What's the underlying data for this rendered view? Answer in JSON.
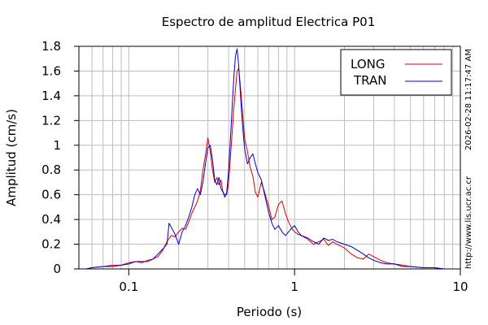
{
  "chart_data": {
    "type": "line",
    "title": "Espectro de amplitud Electrica P01",
    "xlabel": "Periodo (s)",
    "ylabel": "Amplitud (cm/s)",
    "x_scale": "log",
    "xlim": [
      0.05,
      10
    ],
    "ylim": [
      0,
      1.8
    ],
    "grid": true,
    "legend_position": "top-right",
    "x_ticks": [
      {
        "value": 0.1,
        "label": "0.1"
      },
      {
        "value": 1,
        "label": "1"
      },
      {
        "value": 10,
        "label": "10"
      }
    ],
    "y_ticks": [
      {
        "value": 0,
        "label": "0"
      },
      {
        "value": 0.2,
        "label": "0.2"
      },
      {
        "value": 0.4,
        "label": "0.4"
      },
      {
        "value": 0.6,
        "label": "0.6"
      },
      {
        "value": 0.8,
        "label": "0.8"
      },
      {
        "value": 1.0,
        "label": "1"
      },
      {
        "value": 1.2,
        "label": "1.2"
      },
      {
        "value": 1.4,
        "label": "1.4"
      },
      {
        "value": 1.6,
        "label": "1.6"
      },
      {
        "value": 1.8,
        "label": "1.8"
      }
    ],
    "series": [
      {
        "name": "LONG",
        "color": "#dd0000",
        "points": [
          [
            0.055,
            0.0
          ],
          [
            0.06,
            0.01
          ],
          [
            0.07,
            0.02
          ],
          [
            0.08,
            0.03
          ],
          [
            0.09,
            0.03
          ],
          [
            0.1,
            0.05
          ],
          [
            0.11,
            0.06
          ],
          [
            0.12,
            0.05
          ],
          [
            0.13,
            0.07
          ],
          [
            0.14,
            0.08
          ],
          [
            0.15,
            0.1
          ],
          [
            0.16,
            0.15
          ],
          [
            0.17,
            0.22
          ],
          [
            0.18,
            0.27
          ],
          [
            0.19,
            0.26
          ],
          [
            0.2,
            0.3
          ],
          [
            0.21,
            0.33
          ],
          [
            0.22,
            0.32
          ],
          [
            0.23,
            0.38
          ],
          [
            0.24,
            0.45
          ],
          [
            0.25,
            0.5
          ],
          [
            0.26,
            0.55
          ],
          [
            0.27,
            0.63
          ],
          [
            0.28,
            0.8
          ],
          [
            0.29,
            0.92
          ],
          [
            0.3,
            1.06
          ],
          [
            0.31,
            0.95
          ],
          [
            0.32,
            0.8
          ],
          [
            0.33,
            0.7
          ],
          [
            0.34,
            0.74
          ],
          [
            0.35,
            0.68
          ],
          [
            0.36,
            0.72
          ],
          [
            0.37,
            0.62
          ],
          [
            0.38,
            0.6
          ],
          [
            0.39,
            0.6
          ],
          [
            0.4,
            0.7
          ],
          [
            0.41,
            0.9
          ],
          [
            0.42,
            1.1
          ],
          [
            0.43,
            1.3
          ],
          [
            0.44,
            1.45
          ],
          [
            0.45,
            1.6
          ],
          [
            0.46,
            1.62
          ],
          [
            0.47,
            1.5
          ],
          [
            0.48,
            1.35
          ],
          [
            0.49,
            1.2
          ],
          [
            0.5,
            1.05
          ],
          [
            0.52,
            0.95
          ],
          [
            0.54,
            0.82
          ],
          [
            0.56,
            0.75
          ],
          [
            0.58,
            0.62
          ],
          [
            0.6,
            0.58
          ],
          [
            0.63,
            0.7
          ],
          [
            0.66,
            0.62
          ],
          [
            0.7,
            0.5
          ],
          [
            0.73,
            0.4
          ],
          [
            0.76,
            0.42
          ],
          [
            0.8,
            0.52
          ],
          [
            0.84,
            0.55
          ],
          [
            0.88,
            0.45
          ],
          [
            0.92,
            0.38
          ],
          [
            0.96,
            0.33
          ],
          [
            1.0,
            0.3
          ],
          [
            1.05,
            0.28
          ],
          [
            1.1,
            0.27
          ],
          [
            1.2,
            0.24
          ],
          [
            1.3,
            0.2
          ],
          [
            1.4,
            0.22
          ],
          [
            1.5,
            0.24
          ],
          [
            1.6,
            0.19
          ],
          [
            1.7,
            0.22
          ],
          [
            1.8,
            0.2
          ],
          [
            2.0,
            0.17
          ],
          [
            2.2,
            0.12
          ],
          [
            2.4,
            0.09
          ],
          [
            2.6,
            0.08
          ],
          [
            2.8,
            0.12
          ],
          [
            3.0,
            0.1
          ],
          [
            3.3,
            0.07
          ],
          [
            3.6,
            0.05
          ],
          [
            4.0,
            0.04
          ],
          [
            4.5,
            0.03
          ],
          [
            5.0,
            0.02
          ],
          [
            6.0,
            0.01
          ],
          [
            7.0,
            0.01
          ],
          [
            8.0,
            0.0
          ]
        ]
      },
      {
        "name": "TRAN",
        "color": "#0000cc",
        "points": [
          [
            0.055,
            0.0
          ],
          [
            0.06,
            0.01
          ],
          [
            0.07,
            0.02
          ],
          [
            0.08,
            0.02
          ],
          [
            0.09,
            0.03
          ],
          [
            0.1,
            0.04
          ],
          [
            0.11,
            0.06
          ],
          [
            0.12,
            0.06
          ],
          [
            0.13,
            0.06
          ],
          [
            0.14,
            0.08
          ],
          [
            0.15,
            0.12
          ],
          [
            0.16,
            0.16
          ],
          [
            0.17,
            0.2
          ],
          [
            0.175,
            0.37
          ],
          [
            0.18,
            0.34
          ],
          [
            0.19,
            0.28
          ],
          [
            0.2,
            0.2
          ],
          [
            0.21,
            0.3
          ],
          [
            0.22,
            0.35
          ],
          [
            0.23,
            0.42
          ],
          [
            0.24,
            0.5
          ],
          [
            0.25,
            0.6
          ],
          [
            0.26,
            0.65
          ],
          [
            0.27,
            0.6
          ],
          [
            0.28,
            0.7
          ],
          [
            0.29,
            0.85
          ],
          [
            0.3,
            0.98
          ],
          [
            0.31,
            1.0
          ],
          [
            0.32,
            0.88
          ],
          [
            0.33,
            0.72
          ],
          [
            0.34,
            0.68
          ],
          [
            0.35,
            0.74
          ],
          [
            0.36,
            0.65
          ],
          [
            0.37,
            0.62
          ],
          [
            0.38,
            0.58
          ],
          [
            0.39,
            0.62
          ],
          [
            0.4,
            0.8
          ],
          [
            0.41,
            1.05
          ],
          [
            0.42,
            1.3
          ],
          [
            0.43,
            1.55
          ],
          [
            0.44,
            1.72
          ],
          [
            0.45,
            1.78
          ],
          [
            0.46,
            1.65
          ],
          [
            0.47,
            1.45
          ],
          [
            0.48,
            1.25
          ],
          [
            0.49,
            1.1
          ],
          [
            0.5,
            0.97
          ],
          [
            0.52,
            0.85
          ],
          [
            0.54,
            0.9
          ],
          [
            0.56,
            0.93
          ],
          [
            0.58,
            0.85
          ],
          [
            0.6,
            0.78
          ],
          [
            0.63,
            0.72
          ],
          [
            0.66,
            0.6
          ],
          [
            0.7,
            0.45
          ],
          [
            0.73,
            0.37
          ],
          [
            0.76,
            0.32
          ],
          [
            0.8,
            0.35
          ],
          [
            0.84,
            0.3
          ],
          [
            0.88,
            0.27
          ],
          [
            0.92,
            0.3
          ],
          [
            0.96,
            0.33
          ],
          [
            1.0,
            0.35
          ],
          [
            1.05,
            0.3
          ],
          [
            1.1,
            0.27
          ],
          [
            1.2,
            0.25
          ],
          [
            1.3,
            0.22
          ],
          [
            1.4,
            0.2
          ],
          [
            1.5,
            0.25
          ],
          [
            1.6,
            0.23
          ],
          [
            1.7,
            0.24
          ],
          [
            1.8,
            0.22
          ],
          [
            2.0,
            0.2
          ],
          [
            2.2,
            0.18
          ],
          [
            2.4,
            0.15
          ],
          [
            2.6,
            0.12
          ],
          [
            2.8,
            0.09
          ],
          [
            3.0,
            0.07
          ],
          [
            3.3,
            0.05
          ],
          [
            3.6,
            0.04
          ],
          [
            4.0,
            0.04
          ],
          [
            4.5,
            0.02
          ],
          [
            5.0,
            0.02
          ],
          [
            6.0,
            0.01
          ],
          [
            7.0,
            0.01
          ],
          [
            8.0,
            0.0
          ]
        ]
      }
    ]
  },
  "side_labels": {
    "timestamp": "2026-02-28 11:17:47 AM",
    "url": "http://www.lis.ucr.ac.cr"
  }
}
